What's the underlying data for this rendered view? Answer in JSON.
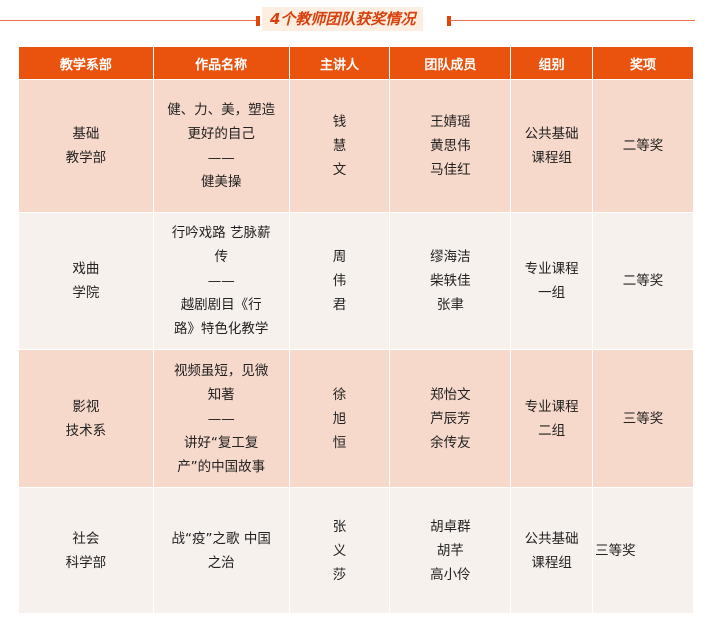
{
  "title": "4个教师团队获奖情况",
  "colors": {
    "header": "#e9530e",
    "row_odd": "#f6d9cb",
    "row_even": "#f7f1ee"
  },
  "headers": [
    "教学系部",
    "作品名称",
    "主讲人",
    "团队成员",
    "组别",
    "奖项"
  ],
  "rows": [
    [
      "基础\n教学部",
      "健、力、美，塑造\n更好的自己\n——\n健美操",
      "钱\n慧\n文",
      "王婧瑶\n黄思伟\n马佳红",
      "公共基础\n课程组",
      "二等奖"
    ],
    [
      "戏曲\n学院",
      "行吟戏路 艺脉薪\n传\n——\n越剧剧目《行\n路》特色化教学",
      "周\n伟\n君",
      "缪海洁\n柴轶佳\n张聿",
      "专业课程\n一组",
      "二等奖"
    ],
    [
      "影视\n技术系",
      "视频虽短，见微\n知著\n——\n讲好“复工复\n产”的中国故事",
      "徐\n旭\n恒",
      "郑怡文\n芦辰芳\n余传友",
      "专业课程\n二组",
      "三等奖"
    ],
    [
      "社会\n科学部",
      "战“疫”之歌 中国\n之治",
      "张\n义\n莎",
      "胡卓群\n胡芊\n高小伶",
      "公共基础\n课程组",
      "三等奖"
    ]
  ]
}
